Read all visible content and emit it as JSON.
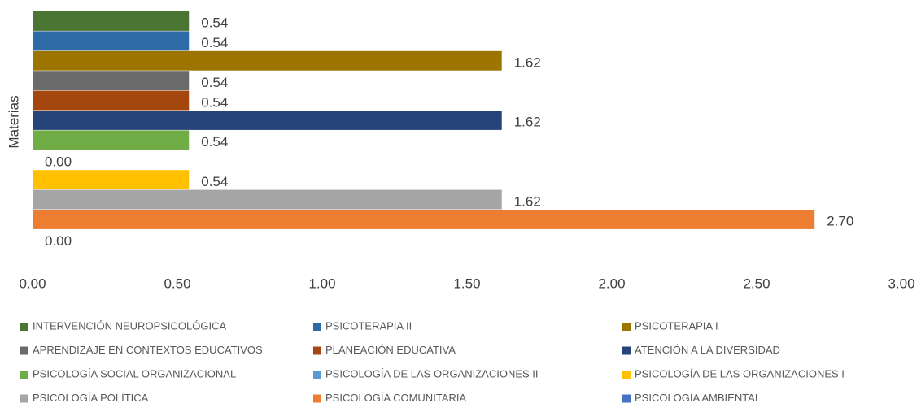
{
  "chart_data": {
    "type": "bar",
    "orientation": "horizontal",
    "y_label": "Materias",
    "series": [
      {
        "name": "INTERVENCIÓN NEUROPSICOLÓGICA",
        "color": "#4a7532",
        "values": [
          0.54
        ],
        "value_labels": [
          "0.54"
        ]
      },
      {
        "name": "PSICOTERAPIA II",
        "color": "#2e6aa6",
        "values": [
          0.54
        ],
        "value_labels": [
          "0.54"
        ]
      },
      {
        "name": "PSICOTERAPIA I",
        "color": "#9c7500",
        "values": [
          1.62
        ],
        "value_labels": [
          "1.62"
        ]
      },
      {
        "name": "APRENDIZAJE EN CONTEXTOS EDUCATIVOS",
        "color": "#6b6b6b",
        "values": [
          0.54
        ],
        "value_labels": [
          "0.54"
        ]
      },
      {
        "name": "PLANEACIÓN EDUCATIVA",
        "color": "#a3470f",
        "values": [
          0.54
        ],
        "value_labels": [
          "0.54"
        ]
      },
      {
        "name": "ATENCIÓN A LA DIVERSIDAD",
        "color": "#26437a",
        "values": [
          1.62
        ],
        "value_labels": [
          "1.62"
        ]
      },
      {
        "name": "PSICOLOGÍA SOCIAL ORGANIZACIONAL",
        "color": "#70ad47",
        "values": [
          0.54
        ],
        "value_labels": [
          "0.54"
        ]
      },
      {
        "name": "PSICOLOGÍA DE LAS ORGANIZACIONES II",
        "color": "#5b9bd5",
        "values": [
          0
        ],
        "value_labels": [
          "0.00"
        ]
      },
      {
        "name": "PSICOLOGÍA DE LAS ORGANIZACIONES I",
        "color": "#ffc000",
        "values": [
          0.54
        ],
        "value_labels": [
          "0.54"
        ]
      },
      {
        "name": "PSICOLOGÍA POLÍTICA",
        "color": "#a5a5a5",
        "values": [
          1.62
        ],
        "value_labels": [
          "1.62"
        ]
      },
      {
        "name": "PSICOLOGÍA COMUNITARIA",
        "color": "#ed7d31",
        "values": [
          2.7
        ],
        "value_labels": [
          "2.70"
        ]
      },
      {
        "name": "PSICOLOGÍA AMBIENTAL",
        "color": "#4472c4",
        "values": [
          0
        ],
        "value_labels": [
          "0.00"
        ]
      }
    ],
    "xlim": [
      0,
      3
    ],
    "xticks": [
      {
        "value": 0,
        "label": "0.00"
      },
      {
        "value": 0.5,
        "label": "0.50"
      },
      {
        "value": 1,
        "label": "1.00"
      },
      {
        "value": 1.5,
        "label": "1.50"
      },
      {
        "value": 2,
        "label": "2.00"
      },
      {
        "value": 2.5,
        "label": "2.50"
      },
      {
        "value": 3,
        "label": "3.00"
      }
    ],
    "grid": false,
    "legend": "bottom"
  }
}
